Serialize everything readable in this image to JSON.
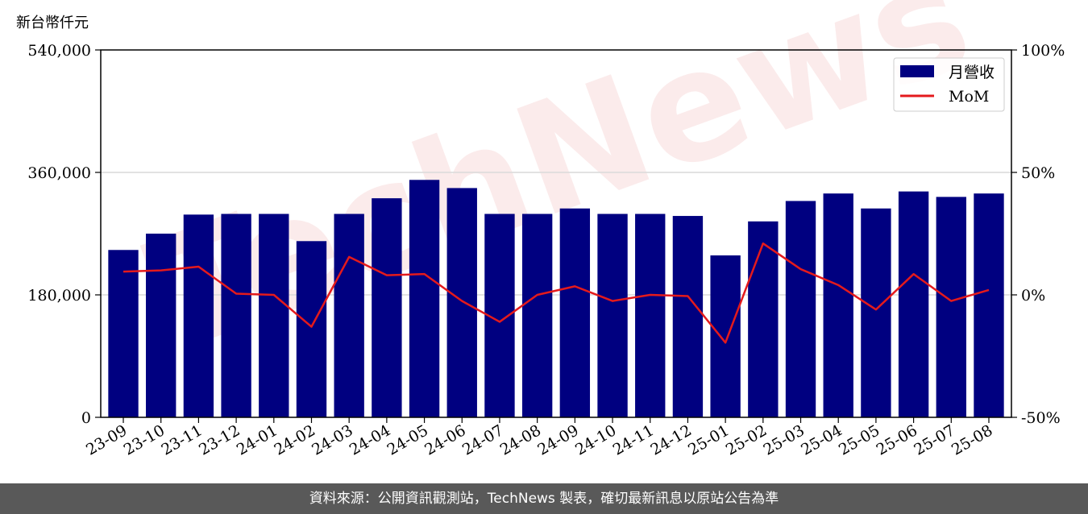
{
  "unit_label": "新台幣仟元",
  "watermark": "TechNews",
  "footer": "資料來源：公開資訊觀測站，TechNews 製表，確切最新訊息以原站公告為準",
  "colors": {
    "bar": "#000080",
    "line": "#e41a1c",
    "grid": "#d9d9d9",
    "footer_bg": "#595959"
  },
  "chart_data": {
    "type": "bar",
    "categories": [
      "23-09",
      "23-10",
      "23-11",
      "23-12",
      "24-01",
      "24-02",
      "24-03",
      "24-04",
      "24-05",
      "24-06",
      "24-07",
      "24-08",
      "24-09",
      "24-10",
      "24-11",
      "24-12",
      "25-01",
      "25-02",
      "25-03",
      "25-04",
      "25-05",
      "25-06",
      "25-07",
      "25-08"
    ],
    "series": [
      {
        "name": "月營收",
        "axis": "left",
        "type": "bar",
        "values": [
          246000,
          270000,
          298000,
          299000,
          299000,
          259000,
          299000,
          322000,
          349000,
          337000,
          299000,
          299000,
          307000,
          299000,
          299000,
          296000,
          238000,
          288000,
          318000,
          329000,
          307000,
          332000,
          324000,
          329000
        ]
      },
      {
        "name": "MoM",
        "axis": "right",
        "type": "line",
        "values": [
          9.5,
          10,
          11.5,
          0.5,
          0,
          -13,
          15.5,
          8,
          8.5,
          -2.5,
          -11,
          0,
          3.5,
          -2.5,
          0,
          -0.5,
          -19.5,
          21,
          10.5,
          4,
          -6,
          8.5,
          -2.5,
          2
        ]
      }
    ],
    "y_left": {
      "ylim": [
        0,
        540000
      ],
      "ticks": [
        "0",
        "180,000",
        "360,000",
        "540,000"
      ],
      "tick_values": [
        0,
        180000,
        360000,
        540000
      ]
    },
    "y_right": {
      "ylim": [
        -50,
        100
      ],
      "ticks": [
        "-50%",
        "0%",
        "50%",
        "100%"
      ],
      "tick_values": [
        -50,
        0,
        50,
        100
      ]
    },
    "grid": "horizontal",
    "legend": "top-right"
  }
}
